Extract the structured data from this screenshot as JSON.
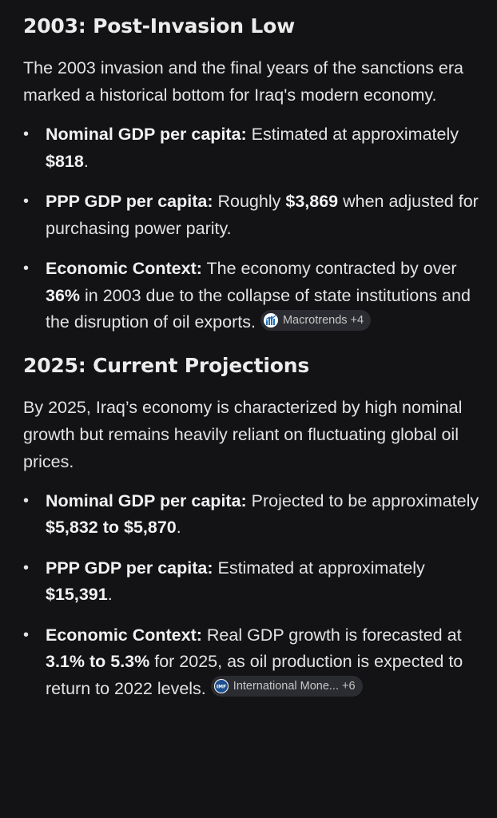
{
  "colors": {
    "background": "#131316",
    "text": "#e3e3e3",
    "chip_background": "#2b2c31",
    "macrotrends_icon": "#1f6fb8",
    "imf_icon": "#1c4f8f"
  },
  "sections": [
    {
      "title": "2003: Post-Invasion Low",
      "intro": "The 2003 invasion and the final years of the sanctions era marked a historical bottom for Iraq's modern economy.",
      "points": [
        {
          "label": "Nominal GDP per capita:",
          "pre": " Estimated at approximately ",
          "value": "$818",
          "post": "."
        },
        {
          "label": "PPP GDP per capita:",
          "pre": " Roughly ",
          "value": "$3,869",
          "post": " when adjusted for purchasing power parity."
        },
        {
          "label": "Economic Context:",
          "pre": " The economy contracted by over ",
          "value": "36%",
          "post": " in 2003 due to the collapse of state institutions and the disruption of oil exports.",
          "source": {
            "name": "Macrotrends",
            "count": "+4",
            "icon": "macrotrends-icon"
          }
        }
      ]
    },
    {
      "title": "2025: Current Projections",
      "intro": "By 2025, Iraq’s economy is characterized by high nominal growth but remains heavily reliant on fluctuating global oil prices.",
      "points": [
        {
          "label": "Nominal GDP per capita:",
          "pre": " Projected to be approximately ",
          "value": "$5,832 to $5,870",
          "post": "."
        },
        {
          "label": "PPP GDP per capita:",
          "pre": " Estimated at approximately ",
          "value": "$15,391",
          "post": "."
        },
        {
          "label": "Economic Context:",
          "pre": " Real GDP growth is forecasted at ",
          "value": "3.1% to 5.3%",
          "post": " for 2025, as oil production is expected to return to 2022 levels.",
          "source": {
            "name": "International Mone...",
            "count": "+6",
            "icon": "imf-icon",
            "icon_text": "IMF"
          }
        }
      ]
    }
  ]
}
